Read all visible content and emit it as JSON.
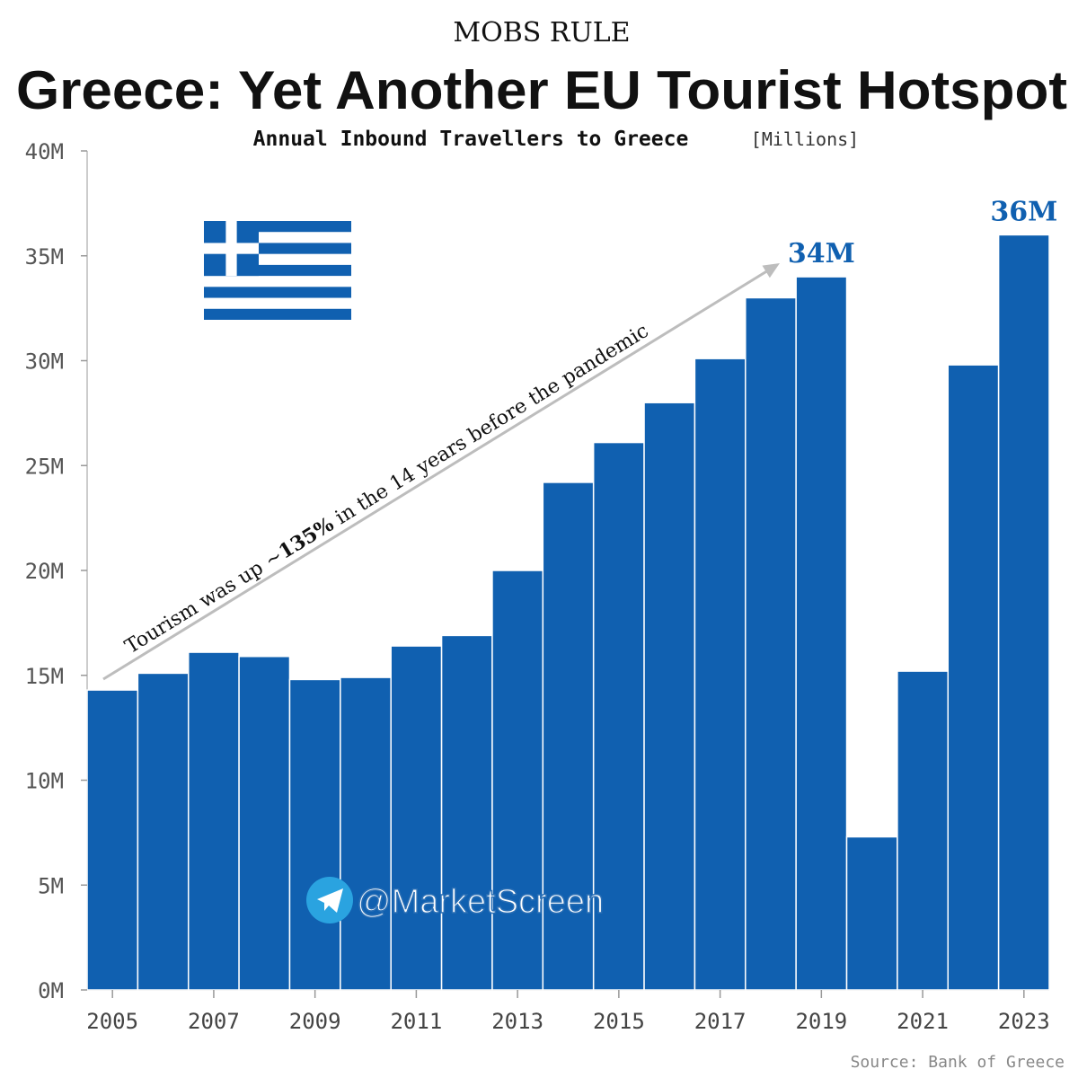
{
  "header": {
    "kicker": "MOBS RULE",
    "title": "Greece: Yet Another EU Tourist Hotspot",
    "subtitle": "Annual Inbound Travellers to Greece",
    "unit": "[Millions]"
  },
  "chart_data": {
    "type": "bar",
    "title": "Annual Inbound Travellers to Greece",
    "unit": "Millions",
    "x": [
      2005,
      2006,
      2007,
      2008,
      2009,
      2010,
      2011,
      2012,
      2013,
      2014,
      2015,
      2016,
      2017,
      2018,
      2019,
      2020,
      2021,
      2022,
      2023
    ],
    "values": [
      14.3,
      15.1,
      16.1,
      15.9,
      14.8,
      14.9,
      16.4,
      16.9,
      20.0,
      24.2,
      26.1,
      28.0,
      30.1,
      33.0,
      34.0,
      7.3,
      15.2,
      29.8,
      36.0
    ],
    "xtick_labels": [
      "2005",
      "2007",
      "2009",
      "2011",
      "2013",
      "2015",
      "2017",
      "2019",
      "2021",
      "2023"
    ],
    "ytick_labels": [
      "0M",
      "5M",
      "10M",
      "15M",
      "20M",
      "25M",
      "30M",
      "35M",
      "40M"
    ],
    "ylim": [
      0,
      40
    ],
    "bar_color": "#1060b0",
    "data_labels": [
      {
        "year": 2019,
        "text": "34M"
      },
      {
        "year": 2023,
        "text": "36M"
      }
    ],
    "annotation": {
      "prefix": "Tourism was up ~",
      "bold": "135%",
      "suffix": " in the 14 years before the pandemic",
      "from_year": 2005,
      "to_year": 2019
    }
  },
  "watermark": {
    "handle": "@MarketScreen",
    "icon": "telegram-icon"
  },
  "flag": {
    "name": "greek-flag",
    "color": "#1060b0"
  },
  "source": "Source: Bank of Greece"
}
